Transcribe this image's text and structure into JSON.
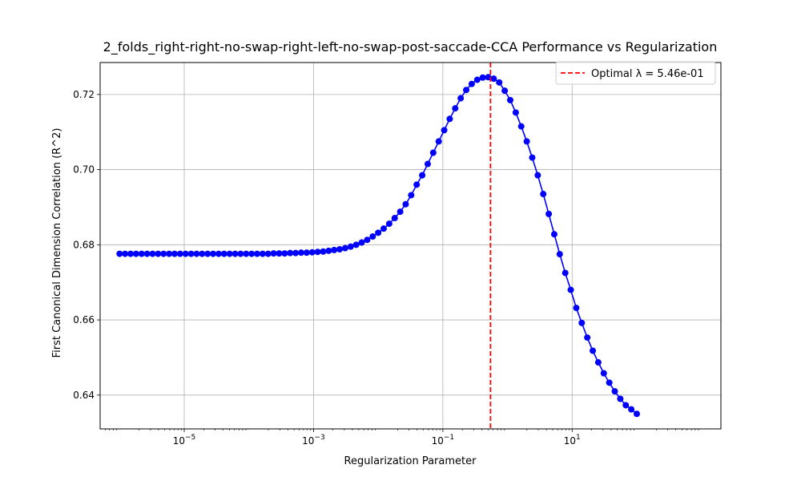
{
  "chart_data": {
    "type": "line",
    "title": "2_folds_right-right-no-swap-right-left-no-swap-post-saccade-CCA Performance vs Regularization",
    "xlabel": "Regularization Parameter",
    "ylabel": "First Canonical Dimension Correlation (R^2)",
    "x_scale": "log",
    "xlim": [
      5e-07,
      2000.0
    ],
    "ylim": [
      0.631,
      0.7285
    ],
    "x_ticks": [
      1e-05,
      0.001,
      0.1,
      10.0
    ],
    "x_tick_labels": [
      {
        "base": "10",
        "exp": "−5"
      },
      {
        "base": "10",
        "exp": "−3"
      },
      {
        "base": "10",
        "exp": "−1"
      },
      {
        "base": "10",
        "exp": "1"
      }
    ],
    "y_ticks": [
      0.64,
      0.66,
      0.68,
      0.7,
      0.72
    ],
    "y_tick_labels": [
      "0.64",
      "0.66",
      "0.68",
      "0.70",
      "0.72"
    ],
    "grid": true,
    "legend_position": "top-right",
    "series": [
      {
        "color": "#0000ff",
        "marker": "circle",
        "x_log10_start": -6,
        "x_log10_end": 2,
        "values": [
          0.6776,
          0.6776,
          0.6776,
          0.6776,
          0.6776,
          0.6776,
          0.6776,
          0.6776,
          0.6776,
          0.6776,
          0.6776,
          0.6776,
          0.6776,
          0.6776,
          0.6776,
          0.6776,
          0.6776,
          0.6776,
          0.6776,
          0.6776,
          0.6776,
          0.6776,
          0.6776,
          0.6776,
          0.6776,
          0.6776,
          0.6776,
          0.6776,
          0.6777,
          0.6777,
          0.6777,
          0.6778,
          0.6778,
          0.6779,
          0.6779,
          0.678,
          0.6781,
          0.6782,
          0.6784,
          0.6786,
          0.6788,
          0.6791,
          0.6795,
          0.68,
          0.6806,
          0.6813,
          0.6822,
          0.6832,
          0.6843,
          0.6856,
          0.6871,
          0.6888,
          0.6908,
          0.6932,
          0.696,
          0.6985,
          0.7015,
          0.7045,
          0.7075,
          0.7105,
          0.7135,
          0.7163,
          0.719,
          0.7212,
          0.7228,
          0.7239,
          0.7245,
          0.7246,
          0.7242,
          0.7232,
          0.721,
          0.7185,
          0.7152,
          0.7115,
          0.7075,
          0.7032,
          0.6985,
          0.6935,
          0.6882,
          0.6828,
          0.6775,
          0.6725,
          0.668,
          0.6632,
          0.6592,
          0.6553,
          0.6518,
          0.6487,
          0.6458,
          0.6433,
          0.641,
          0.639,
          0.6373,
          0.6362,
          0.635
        ]
      }
    ],
    "optimal_line": {
      "x": 0.546,
      "color": "#ff0000",
      "label": "Optimal λ = 5.46e-01"
    }
  }
}
